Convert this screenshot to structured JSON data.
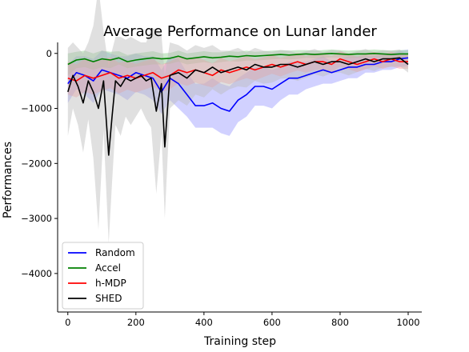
{
  "chart_data": {
    "type": "line",
    "title": "Average Performance on Lunar lander",
    "xlabel": "Training step",
    "ylabel": "Performances",
    "xlim": [
      -30,
      1040
    ],
    "ylim": [
      -4700,
      200
    ],
    "xticks": [
      0,
      200,
      400,
      600,
      800,
      1000
    ],
    "yticks": [
      0,
      -1000,
      -2000,
      -3000,
      -4000
    ],
    "ytick_labels": [
      "0",
      "−1000",
      "−2000",
      "−3000",
      "−4000"
    ],
    "xtick_labels": [
      "0",
      "200",
      "400",
      "600",
      "800",
      "1000"
    ],
    "grid": false,
    "legend": {
      "location": "lower-left"
    },
    "series": [
      {
        "name": "Random",
        "color": "#0000ff",
        "shade_color": "#9999ff",
        "x": [
          0,
          25,
          50,
          75,
          100,
          125,
          150,
          175,
          200,
          225,
          250,
          275,
          300,
          325,
          350,
          375,
          400,
          425,
          450,
          475,
          500,
          525,
          550,
          575,
          600,
          625,
          650,
          675,
          700,
          725,
          750,
          775,
          800,
          825,
          850,
          875,
          900,
          925,
          950,
          975,
          1000
        ],
        "values": [
          -550,
          -350,
          -400,
          -500,
          -300,
          -350,
          -400,
          -450,
          -350,
          -400,
          -450,
          -700,
          -450,
          -550,
          -750,
          -950,
          -950,
          -900,
          -1000,
          -1050,
          -850,
          -750,
          -600,
          -600,
          -650,
          -550,
          -450,
          -450,
          -400,
          -350,
          -300,
          -350,
          -300,
          -250,
          -250,
          -200,
          -200,
          -150,
          -150,
          -100,
          -80
        ],
        "band": [
          350,
          300,
          350,
          400,
          350,
          350,
          350,
          400,
          350,
          350,
          400,
          400,
          400,
          450,
          400,
          400,
          400,
          450,
          450,
          450,
          400,
          400,
          350,
          350,
          350,
          300,
          300,
          300,
          250,
          250,
          250,
          200,
          200,
          200,
          200,
          150,
          150,
          150,
          150,
          150,
          150
        ]
      },
      {
        "name": "Accel",
        "color": "#008000",
        "shade_color": "#8fce8f",
        "x": [
          0,
          25,
          50,
          75,
          100,
          125,
          150,
          175,
          200,
          225,
          250,
          275,
          300,
          325,
          350,
          375,
          400,
          425,
          450,
          475,
          500,
          525,
          550,
          575,
          600,
          625,
          650,
          675,
          700,
          725,
          750,
          775,
          800,
          825,
          850,
          875,
          900,
          925,
          950,
          975,
          1000
        ],
        "values": [
          -200,
          -120,
          -100,
          -150,
          -100,
          -120,
          -80,
          -150,
          -120,
          -100,
          -80,
          -100,
          -90,
          -50,
          -100,
          -80,
          -60,
          -80,
          -70,
          -50,
          -60,
          -40,
          -50,
          -40,
          -30,
          -20,
          -30,
          -20,
          -10,
          -20,
          -10,
          0,
          -10,
          -20,
          -10,
          -10,
          0,
          -10,
          -20,
          -10,
          -10
        ],
        "band": [
          200,
          150,
          150,
          150,
          150,
          150,
          120,
          120,
          120,
          120,
          120,
          100,
          100,
          100,
          100,
          100,
          100,
          100,
          90,
          90,
          90,
          90,
          80,
          80,
          80,
          80,
          80,
          80,
          70,
          70,
          70,
          70,
          70,
          70,
          70,
          70,
          70,
          70,
          70,
          70,
          70
        ]
      },
      {
        "name": "h-MDP",
        "color": "#ff0000",
        "shade_color": "#ff9999",
        "x": [
          0,
          25,
          50,
          75,
          100,
          125,
          150,
          175,
          200,
          225,
          250,
          275,
          300,
          325,
          350,
          375,
          400,
          425,
          450,
          475,
          500,
          525,
          550,
          575,
          600,
          625,
          650,
          675,
          700,
          725,
          750,
          775,
          800,
          825,
          850,
          875,
          900,
          925,
          950,
          975,
          1000
        ],
        "values": [
          -450,
          -500,
          -400,
          -450,
          -400,
          -350,
          -450,
          -400,
          -450,
          -400,
          -350,
          -450,
          -400,
          -300,
          -350,
          -300,
          -350,
          -400,
          -300,
          -350,
          -300,
          -250,
          -300,
          -250,
          -200,
          -250,
          -200,
          -150,
          -200,
          -150,
          -150,
          -200,
          -100,
          -150,
          -200,
          -150,
          -100,
          -150,
          -100,
          -150,
          -150
        ],
        "band": [
          300,
          300,
          300,
          300,
          280,
          280,
          280,
          260,
          260,
          260,
          250,
          250,
          250,
          240,
          240,
          230,
          230,
          220,
          220,
          210,
          200,
          200,
          190,
          180,
          170,
          170,
          160,
          160,
          150,
          150,
          150,
          150,
          140,
          140,
          140,
          140,
          130,
          130,
          130,
          130,
          130
        ]
      },
      {
        "name": "SHED",
        "color": "#000000",
        "shade_color": "#bbbbbb",
        "x": [
          0,
          15,
          30,
          45,
          60,
          75,
          90,
          105,
          120,
          130,
          140,
          155,
          170,
          185,
          200,
          215,
          230,
          245,
          260,
          275,
          285,
          300,
          325,
          350,
          375,
          400,
          425,
          450,
          475,
          500,
          525,
          550,
          575,
          600,
          625,
          650,
          675,
          700,
          725,
          750,
          775,
          800,
          825,
          850,
          875,
          900,
          925,
          950,
          975,
          1000
        ],
        "values": [
          -700,
          -400,
          -600,
          -900,
          -500,
          -700,
          -1000,
          -500,
          -1850,
          -1150,
          -500,
          -600,
          -450,
          -500,
          -450,
          -400,
          -500,
          -450,
          -1050,
          -550,
          -1700,
          -400,
          -350,
          -450,
          -300,
          -350,
          -250,
          -350,
          -300,
          -250,
          -300,
          -200,
          -250,
          -250,
          -200,
          -200,
          -250,
          -200,
          -150,
          -200,
          -150,
          -150,
          -200,
          -150,
          -100,
          -150,
          -100,
          -100,
          -80,
          -200
        ],
        "band": [
          800,
          600,
          700,
          900,
          700,
          1200,
          2200,
          900,
          1600,
          1200,
          800,
          900,
          700,
          800,
          700,
          600,
          700,
          900,
          1500,
          900,
          1300,
          600,
          500,
          500,
          450,
          450,
          400,
          400,
          350,
          350,
          320,
          300,
          300,
          280,
          260,
          250,
          250,
          240,
          230,
          220,
          210,
          200,
          200,
          190,
          180,
          170,
          160,
          150,
          150,
          150
        ]
      }
    ]
  }
}
